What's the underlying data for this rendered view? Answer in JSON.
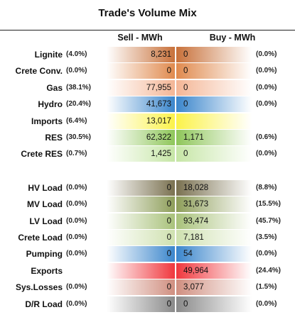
{
  "chart_data": {
    "type": "table",
    "title": "Trade's Volume Mix",
    "columns": [
      "Sell - MWh",
      "Buy - MWh"
    ],
    "rows": [
      {
        "label": "Lignite",
        "sell_pct": "(4.0%)",
        "sell": "8,231",
        "buy": "0",
        "buy_pct": "(0.0%)",
        "sell_color": "#c8713a",
        "buy_color": "#c8713a"
      },
      {
        "label": "Crete Conv.",
        "sell_pct": "(0.0%)",
        "sell": "0",
        "buy": "0",
        "buy_pct": "(0.0%)",
        "sell_color": "#e08a4e",
        "buy_color": "#e08a4e"
      },
      {
        "label": "Gas",
        "sell_pct": "(38.1%)",
        "sell": "77,955",
        "buy": "0",
        "buy_pct": "(0.0%)",
        "sell_color": "#f4b696",
        "buy_color": "#f4b696"
      },
      {
        "label": "Hydro",
        "sell_pct": "(20.4%)",
        "sell": "41,673",
        "buy": "0",
        "buy_pct": "(0.0%)",
        "sell_color": "#3b86cc",
        "buy_color": "#3b86cc"
      },
      {
        "label": "Imports",
        "sell_pct": "(6.4%)",
        "sell": "13,017",
        "buy": "",
        "buy_pct": "",
        "sell_color": "#fbf24a",
        "buy_color": "#fbf24a"
      },
      {
        "label": "RES",
        "sell_pct": "(30.5%)",
        "sell": "62,322",
        "buy": "1,171",
        "buy_pct": "(0.6%)",
        "sell_color": "#8fc65a",
        "buy_color": "#8fc65a"
      },
      {
        "label": "Crete RES",
        "sell_pct": "(0.7%)",
        "sell": "1,425",
        "buy": "0",
        "buy_pct": "(0.0%)",
        "sell_color": "#c6e6a6",
        "buy_color": "#c6e6a6"
      },
      {
        "label": "HV Load",
        "sell_pct": "(0.0%)",
        "sell": "0",
        "buy": "18,028",
        "buy_pct": "(8.8%)",
        "sell_color": "#7a7150",
        "buy_color": "#7a7150"
      },
      {
        "label": "MV Load",
        "sell_pct": "(0.0%)",
        "sell": "0",
        "buy": "31,673",
        "buy_pct": "(15.5%)",
        "sell_color": "#8e9e5a",
        "buy_color": "#8e9e5a"
      },
      {
        "label": "LV Load",
        "sell_pct": "(0.0%)",
        "sell": "0",
        "buy": "93,474",
        "buy_pct": "(45.7%)",
        "sell_color": "#a9c27b",
        "buy_color": "#a9c27b"
      },
      {
        "label": "Crete Load",
        "sell_pct": "(0.0%)",
        "sell": "0",
        "buy": "7,181",
        "buy_pct": "(3.5%)",
        "sell_color": "#cfe1b0",
        "buy_color": "#cfe1b0"
      },
      {
        "label": "Pumping",
        "sell_pct": "(0.0%)",
        "sell": "0",
        "buy": "54",
        "buy_pct": "(0.0%)",
        "sell_color": "#3b86cc",
        "buy_color": "#3b86cc"
      },
      {
        "label": "Exports",
        "sell_pct": "",
        "sell": "",
        "buy": "49,964",
        "buy_pct": "(24.4%)",
        "sell_color": "#f0373d",
        "buy_color": "#f0373d"
      },
      {
        "label": "Sys.Losses",
        "sell_pct": "(0.0%)",
        "sell": "0",
        "buy": "3,077",
        "buy_pct": "(1.5%)",
        "sell_color": "#d08f80",
        "buy_color": "#d08f80"
      },
      {
        "label": "D/R Load",
        "sell_pct": "(0.0%)",
        "sell": "0",
        "buy": "0",
        "buy_pct": "(0.0%)",
        "sell_color": "#8a8a8a",
        "buy_color": "#8a8a8a"
      }
    ]
  }
}
